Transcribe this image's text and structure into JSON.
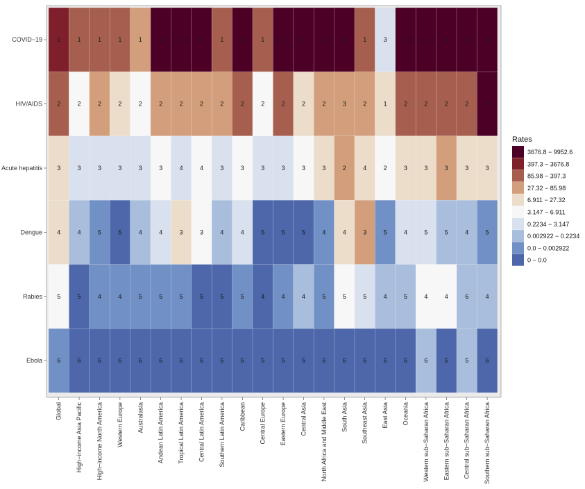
{
  "chart_data": {
    "type": "heatmap",
    "title": "",
    "xlabel": "",
    "ylabel": "",
    "categories": [
      "Global",
      "High−income Asia Pacific",
      "High−income North America",
      "Western Europe",
      "Australasia",
      "Andean Latin America",
      "Tropical Latin America",
      "Central Latin America",
      "Southern Latin America",
      "Caribbean",
      "Central Europe",
      "Eastern Europe",
      "Central Asia",
      "North Africa and Middle East",
      "South Asia",
      "Southeast Asia",
      "East Asia",
      "Oceania",
      "Western sub−Saharan Africa",
      "Eastern sub−Saharan Africa",
      "Central sub−Saharan Africa",
      "Southern sub−Saharan Africa"
    ],
    "rows": [
      "COVID−19",
      "HIV/AIDS",
      "Acute hepatitis",
      "Dengue",
      "Rabies",
      "Ebola"
    ],
    "ranks": [
      [
        1,
        1,
        1,
        1,
        1,
        1,
        1,
        1,
        1,
        1,
        1,
        1,
        1,
        1,
        1,
        1,
        3,
        1,
        1,
        1,
        1,
        1
      ],
      [
        2,
        2,
        2,
        2,
        2,
        2,
        2,
        2,
        2,
        2,
        2,
        2,
        2,
        2,
        3,
        2,
        1,
        2,
        2,
        2,
        2,
        2
      ],
      [
        3,
        3,
        3,
        3,
        3,
        3,
        4,
        4,
        3,
        3,
        3,
        3,
        3,
        3,
        2,
        4,
        2,
        3,
        3,
        3,
        3,
        3
      ],
      [
        4,
        4,
        5,
        5,
        4,
        4,
        3,
        3,
        4,
        4,
        5,
        5,
        5,
        4,
        4,
        3,
        5,
        4,
        5,
        5,
        4,
        5
      ],
      [
        5,
        5,
        4,
        4,
        5,
        5,
        5,
        5,
        5,
        5,
        4,
        4,
        4,
        5,
        5,
        5,
        4,
        5,
        4,
        4,
        6,
        4
      ],
      [
        6,
        6,
        6,
        6,
        6,
        6,
        6,
        6,
        6,
        6,
        5,
        5,
        5,
        6,
        6,
        6,
        6,
        6,
        6,
        6,
        5,
        6
      ]
    ],
    "rate_class": [
      [
        8,
        7,
        7,
        7,
        6,
        9,
        9,
        9,
        7,
        9,
        7,
        9,
        9,
        9,
        9,
        7,
        3,
        9,
        9,
        9,
        9,
        9
      ],
      [
        7,
        4,
        6,
        5,
        4,
        6,
        6,
        6,
        6,
        7,
        4,
        7,
        5,
        6,
        6,
        6,
        5,
        7,
        7,
        7,
        7,
        9
      ],
      [
        5,
        3,
        3,
        3,
        3,
        4,
        3,
        4,
        3,
        4,
        3,
        3,
        4,
        5,
        6,
        5,
        4,
        5,
        5,
        6,
        5,
        5
      ],
      [
        5,
        2,
        1,
        0,
        2,
        3,
        5,
        4,
        2,
        3,
        0,
        0,
        0,
        1,
        5,
        6,
        1,
        3,
        3,
        2,
        2,
        1
      ],
      [
        4,
        0,
        1,
        1,
        1,
        1,
        1,
        0,
        0,
        1,
        0,
        1,
        2,
        1,
        4,
        3,
        2,
        2,
        4,
        4,
        2,
        2
      ],
      [
        1,
        0,
        0,
        0,
        0,
        0,
        0,
        0,
        0,
        0,
        0,
        0,
        0,
        0,
        0,
        0,
        0,
        0,
        2,
        0,
        2,
        0
      ]
    ],
    "legend": {
      "title": "Rates",
      "entries": [
        {
          "label": "3676.8 − 9952.6",
          "color": "#4d0025"
        },
        {
          "label": "397.3 − 3676.8",
          "color": "#7f1f2c"
        },
        {
          "label": "85.98 − 397.3",
          "color": "#a65e4e"
        },
        {
          "label": "27.32 − 85.98",
          "color": "#d39e7c"
        },
        {
          "label": "6.911 − 27.32",
          "color": "#ecdcca"
        },
        {
          "label": "3.147 − 6.911",
          "color": "#f7f7f7"
        },
        {
          "label": "0.2234 − 3.147",
          "color": "#d9e0ee"
        },
        {
          "label": "0.002922 − 0.2234",
          "color": "#a9bedc"
        },
        {
          "label": "0.0 − 0.002922",
          "color": "#7190c5"
        },
        {
          "label": "0 − 0.0",
          "color": "#4d67aa"
        }
      ]
    },
    "legend_position": "right",
    "grid": true
  }
}
